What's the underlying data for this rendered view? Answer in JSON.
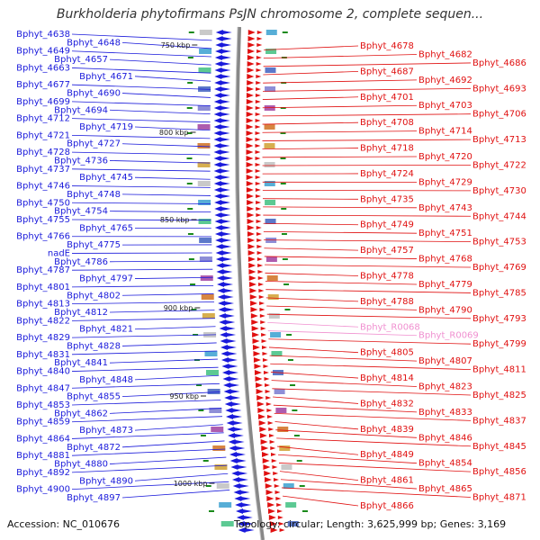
{
  "title": "Burkholderia phytofirmans PsJN chromosome 2, complete sequen...",
  "footer": {
    "accession": "Accession: NC_010676",
    "summary": "Topology: circular; Length: 3,625,999 bp; Genes: 3,169"
  },
  "colors": {
    "forward_strand": "#1a1adb",
    "reverse_strand": "#e01010",
    "rna": "#f090d0",
    "backbone": "#888888",
    "tick_marker": "#1a8a1a"
  },
  "scale_ticks": [
    {
      "label": "750 kbp",
      "kbp": 750
    },
    {
      "label": "800 kbp",
      "kbp": 800
    },
    {
      "label": "850 kbp",
      "kbp": 850
    },
    {
      "label": "900 kbp",
      "kbp": 900
    },
    {
      "label": "950 kbp",
      "kbp": 950
    },
    {
      "label": "1000 kbp",
      "kbp": 1000
    }
  ],
  "left_genes": [
    "Bphyt_4638",
    "Bphyt_4648",
    "Bphyt_4649",
    "Bphyt_4657",
    "Bphyt_4663",
    "Bphyt_4671",
    "Bphyt_4677",
    "Bphyt_4690",
    "Bphyt_4699",
    "Bphyt_4694",
    "Bphyt_4712",
    "Bphyt_4719",
    "Bphyt_4721",
    "Bphyt_4727",
    "Bphyt_4728",
    "Bphyt_4736",
    "Bphyt_4737",
    "Bphyt_4745",
    "Bphyt_4746",
    "Bphyt_4748",
    "Bphyt_4750",
    "Bphyt_4754",
    "Bphyt_4755",
    "Bphyt_4765",
    "Bphyt_4766",
    "Bphyt_4775",
    "nadE",
    "Bphyt_4786",
    "Bphyt_4787",
    "Bphyt_4797",
    "Bphyt_4801",
    "Bphyt_4802",
    "Bphyt_4813",
    "Bphyt_4812",
    "Bphyt_4822",
    "Bphyt_4821",
    "Bphyt_4829",
    "Bphyt_4828",
    "Bphyt_4831",
    "Bphyt_4841",
    "Bphyt_4840",
    "Bphyt_4848",
    "Bphyt_4847",
    "Bphyt_4855",
    "Bphyt_4853",
    "Bphyt_4862",
    "Bphyt_4859",
    "Bphyt_4873",
    "Bphyt_4864",
    "Bphyt_4872",
    "Bphyt_4881",
    "Bphyt_4880",
    "Bphyt_4892",
    "Bphyt_4890",
    "Bphyt_4900",
    "Bphyt_4897"
  ],
  "right_genes": [
    "Bphyt_4678",
    "Bphyt_4682",
    "Bphyt_4686",
    "Bphyt_4687",
    "Bphyt_4692",
    "Bphyt_4693",
    "Bphyt_4701",
    "Bphyt_4703",
    "Bphyt_4706",
    "Bphyt_4708",
    "Bphyt_4714",
    "Bphyt_4713",
    "Bphyt_4718",
    "Bphyt_4720",
    "Bphyt_4722",
    "Bphyt_4724",
    "Bphyt_4729",
    "Bphyt_4730",
    "Bphyt_4735",
    "Bphyt_4743",
    "Bphyt_4744",
    "Bphyt_4749",
    "Bphyt_4751",
    "Bphyt_4753",
    "Bphyt_4757",
    "Bphyt_4768",
    "Bphyt_4769",
    "Bphyt_4778",
    "Bphyt_4779",
    "Bphyt_4785",
    "Bphyt_4788",
    "Bphyt_4790",
    "Bphyt_4793",
    "Bphyt_R0068",
    "Bphyt_R0069",
    "Bphyt_4799",
    "Bphyt_4805",
    "Bphyt_4807",
    "Bphyt_4811",
    "Bphyt_4814",
    "Bphyt_4823",
    "Bphyt_4825",
    "Bphyt_4832",
    "Bphyt_4833",
    "Bphyt_4837",
    "Bphyt_4839",
    "Bphyt_4846",
    "Bphyt_4845",
    "Bphyt_4849",
    "Bphyt_4854",
    "Bphyt_4856",
    "Bphyt_4861",
    "Bphyt_4865",
    "Bphyt_4871",
    "Bphyt_4866"
  ]
}
